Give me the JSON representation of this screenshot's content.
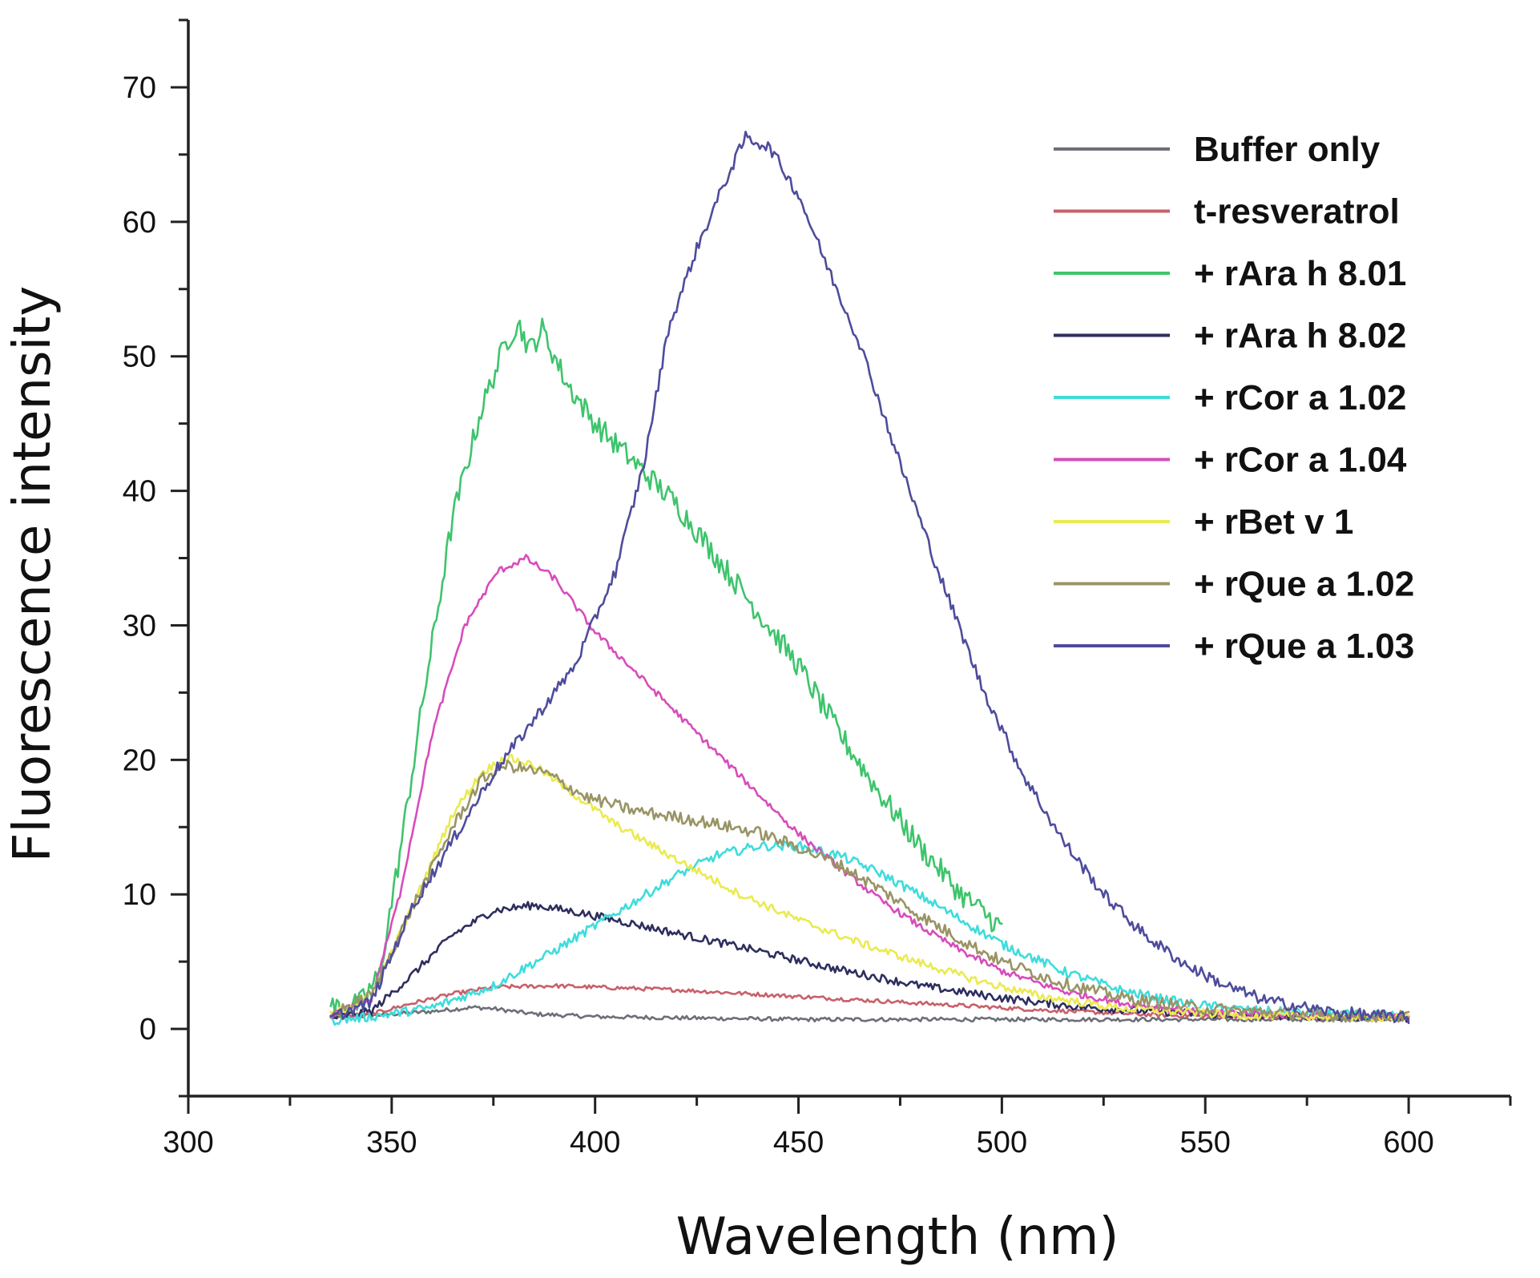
{
  "chart_data": {
    "type": "line",
    "title": "",
    "xlabel": "Wavelength (nm)",
    "ylabel": "Fluorescence intensity",
    "xlim": [
      300,
      625
    ],
    "ylim": [
      -5,
      75
    ],
    "xticks": [
      300,
      350,
      400,
      450,
      500,
      550,
      600
    ],
    "yticks": [
      0,
      10,
      20,
      30,
      40,
      50,
      60,
      70
    ],
    "grid": false,
    "legend_position": "top-right",
    "series": [
      {
        "name": "Buffer only",
        "color": "#6e6e78",
        "noise": 0.15,
        "points": [
          [
            335,
            0.8
          ],
          [
            350,
            1.1
          ],
          [
            360,
            1.3
          ],
          [
            370,
            1.6
          ],
          [
            375,
            1.5
          ],
          [
            385,
            1.1
          ],
          [
            400,
            0.9
          ],
          [
            450,
            0.7
          ],
          [
            500,
            0.7
          ],
          [
            600,
            0.7
          ]
        ]
      },
      {
        "name": "t-resveratrol",
        "color": "#c8606a",
        "noise": 0.15,
        "points": [
          [
            335,
            0.9
          ],
          [
            345,
            1.1
          ],
          [
            355,
            1.9
          ],
          [
            365,
            2.6
          ],
          [
            375,
            3.1
          ],
          [
            390,
            3.2
          ],
          [
            420,
            2.9
          ],
          [
            450,
            2.4
          ],
          [
            480,
            1.9
          ],
          [
            510,
            1.4
          ],
          [
            540,
            1.0
          ],
          [
            600,
            0.8
          ]
        ]
      },
      {
        "name": "+ rAra h 8.01",
        "color": "#3ec46c",
        "noise": 0.9,
        "points": [
          [
            335,
            1.6
          ],
          [
            342,
            1.8
          ],
          [
            347,
            4
          ],
          [
            352,
            13
          ],
          [
            358,
            25
          ],
          [
            365,
            38
          ],
          [
            372,
            46
          ],
          [
            378,
            51
          ],
          [
            381,
            52.5
          ],
          [
            384,
            50.5
          ],
          [
            387,
            52
          ],
          [
            393,
            48
          ],
          [
            400,
            45
          ],
          [
            410,
            42
          ],
          [
            420,
            39
          ],
          [
            430,
            35
          ],
          [
            440,
            31
          ],
          [
            450,
            27
          ],
          [
            460,
            22
          ],
          [
            470,
            17.5
          ],
          [
            480,
            13.5
          ],
          [
            490,
            10
          ],
          [
            500,
            7.5
          ]
        ]
      },
      {
        "name": "+ rAra h 8.02",
        "color": "#2e2e5e",
        "noise": 0.3,
        "points": [
          [
            335,
            0.8
          ],
          [
            345,
            1.3
          ],
          [
            355,
            4
          ],
          [
            365,
            7
          ],
          [
            375,
            8.8
          ],
          [
            385,
            9.2
          ],
          [
            395,
            8.7
          ],
          [
            405,
            8.1
          ],
          [
            420,
            7.1
          ],
          [
            440,
            5.8
          ],
          [
            460,
            4.4
          ],
          [
            480,
            3.2
          ],
          [
            500,
            2.3
          ],
          [
            520,
            1.6
          ],
          [
            550,
            1.1
          ],
          [
            600,
            0.8
          ]
        ]
      },
      {
        "name": "+ rCor a 1.02",
        "color": "#3fdcdc",
        "noise": 0.35,
        "points": [
          [
            335,
            0.6
          ],
          [
            345,
            0.9
          ],
          [
            360,
            1.6
          ],
          [
            375,
            3.2
          ],
          [
            390,
            5.8
          ],
          [
            405,
            8.6
          ],
          [
            420,
            11.4
          ],
          [
            430,
            12.9
          ],
          [
            440,
            13.6
          ],
          [
            450,
            13.6
          ],
          [
            460,
            12.9
          ],
          [
            470,
            11.6
          ],
          [
            480,
            9.9
          ],
          [
            490,
            8.1
          ],
          [
            500,
            6.3
          ],
          [
            515,
            4.3
          ],
          [
            530,
            2.8
          ],
          [
            545,
            1.9
          ],
          [
            560,
            1.4
          ],
          [
            580,
            1.1
          ],
          [
            600,
            0.9
          ]
        ]
      },
      {
        "name": "+ rCor a 1.04",
        "color": "#d84cbc",
        "noise": 0.25,
        "points": [
          [
            335,
            1.0
          ],
          [
            345,
            2.2
          ],
          [
            352,
            10
          ],
          [
            360,
            22
          ],
          [
            368,
            30
          ],
          [
            376,
            34
          ],
          [
            383,
            35
          ],
          [
            390,
            33.5
          ],
          [
            400,
            29.5
          ],
          [
            410,
            26.5
          ],
          [
            420,
            23.5
          ],
          [
            430,
            20.5
          ],
          [
            440,
            17.5
          ],
          [
            450,
            14.5
          ],
          [
            460,
            12
          ],
          [
            470,
            9.6
          ],
          [
            480,
            7.6
          ],
          [
            490,
            5.8
          ],
          [
            500,
            4.3
          ],
          [
            515,
            2.8
          ],
          [
            530,
            1.9
          ],
          [
            550,
            1.2
          ],
          [
            600,
            0.8
          ]
        ]
      },
      {
        "name": "+ rBet v 1",
        "color": "#eaea50",
        "noise": 0.3,
        "points": [
          [
            335,
            1.0
          ],
          [
            345,
            2.5
          ],
          [
            355,
            9
          ],
          [
            365,
            16
          ],
          [
            372,
            19
          ],
          [
            378,
            20.2
          ],
          [
            385,
            19.6
          ],
          [
            395,
            17.4
          ],
          [
            405,
            15.2
          ],
          [
            420,
            12.6
          ],
          [
            435,
            10.1
          ],
          [
            450,
            8.1
          ],
          [
            465,
            6.4
          ],
          [
            480,
            4.9
          ],
          [
            495,
            3.5
          ],
          [
            510,
            2.4
          ],
          [
            530,
            1.5
          ],
          [
            560,
            1.0
          ],
          [
            600,
            0.8
          ]
        ]
      },
      {
        "name": "+ rQue a 1.02",
        "color": "#999464",
        "noise": 0.45,
        "points": [
          [
            335,
            1.0
          ],
          [
            345,
            2.5
          ],
          [
            355,
            9
          ],
          [
            365,
            15
          ],
          [
            372,
            18.5
          ],
          [
            378,
            19.6
          ],
          [
            388,
            19
          ],
          [
            398,
            17.2
          ],
          [
            410,
            16.2
          ],
          [
            425,
            15.5
          ],
          [
            440,
            14.6
          ],
          [
            450,
            13.5
          ],
          [
            460,
            12.2
          ],
          [
            470,
            10.4
          ],
          [
            480,
            8.4
          ],
          [
            490,
            6.6
          ],
          [
            500,
            5.0
          ],
          [
            515,
            3.4
          ],
          [
            530,
            2.3
          ],
          [
            550,
            1.5
          ],
          [
            580,
            1.0
          ],
          [
            600,
            0.9
          ]
        ]
      },
      {
        "name": "+ rQue a 1.03",
        "color": "#4e4c9c",
        "noise": 0.45,
        "points": [
          [
            335,
            0.8
          ],
          [
            345,
            2
          ],
          [
            355,
            9
          ],
          [
            365,
            14
          ],
          [
            375,
            19
          ],
          [
            385,
            23
          ],
          [
            395,
            27
          ],
          [
            405,
            34
          ],
          [
            412,
            42
          ],
          [
            418,
            52
          ],
          [
            425,
            58
          ],
          [
            432,
            63
          ],
          [
            437,
            66.3
          ],
          [
            443,
            65.5
          ],
          [
            450,
            62
          ],
          [
            458,
            56
          ],
          [
            465,
            51
          ],
          [
            475,
            42
          ],
          [
            485,
            33.5
          ],
          [
            495,
            25.5
          ],
          [
            505,
            19
          ],
          [
            515,
            14
          ],
          [
            525,
            10
          ],
          [
            535,
            7
          ],
          [
            545,
            4.8
          ],
          [
            555,
            3.2
          ],
          [
            565,
            2.1
          ],
          [
            580,
            1.3
          ],
          [
            600,
            0.8
          ]
        ]
      }
    ]
  }
}
